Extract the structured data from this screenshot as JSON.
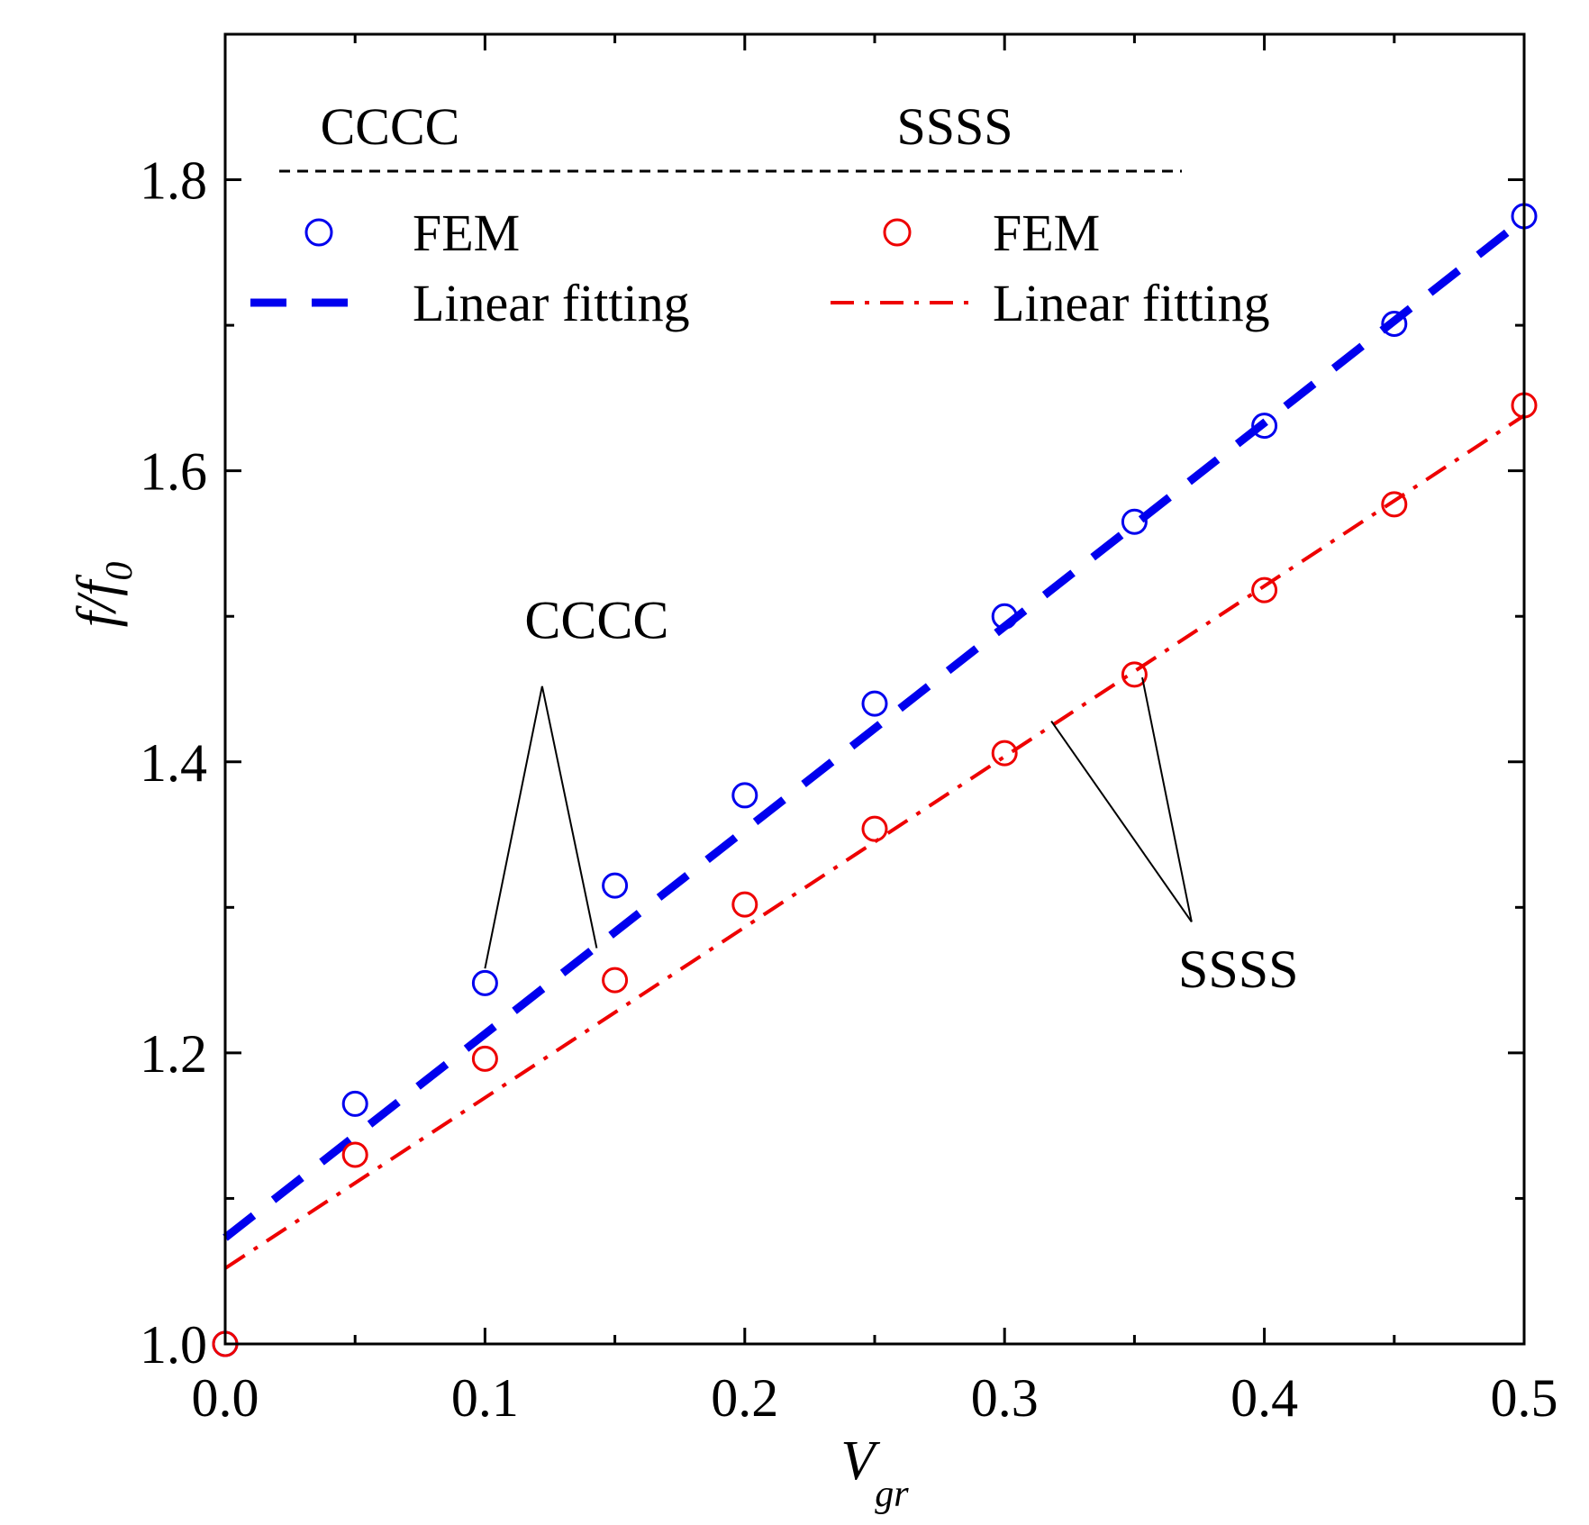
{
  "chart_data": {
    "type": "line",
    "title": "",
    "xlabel": "V",
    "xlabel_subscript": "gr",
    "ylabel": "f/f",
    "ylabel_subscript": "0",
    "xlim": [
      0.0,
      0.5
    ],
    "ylim": [
      1.0,
      1.9
    ],
    "x_ticks": [
      0.0,
      0.1,
      0.2,
      0.3,
      0.4,
      0.5
    ],
    "x_tick_labels": [
      "0.0",
      "0.1",
      "0.2",
      "0.3",
      "0.4",
      "0.5"
    ],
    "y_ticks": [
      1.0,
      1.2,
      1.4,
      1.6,
      1.8
    ],
    "y_tick_labels": [
      "1.0",
      "1.2",
      "1.4",
      "1.6",
      "1.8"
    ],
    "grid": false,
    "legend": {
      "placement": "top-left",
      "groups": [
        {
          "header": "CCCC",
          "entries": [
            {
              "label": "FEM",
              "marker": "open-circle",
              "color": "#0000ee"
            },
            {
              "label": "Linear fitting",
              "line": "dash",
              "color": "#0000ee"
            }
          ]
        },
        {
          "header": "SSSS",
          "entries": [
            {
              "label": "FEM",
              "marker": "open-circle",
              "color": "#ee0000"
            },
            {
              "label": "Linear fitting",
              "line": "dash-dot",
              "color": "#ee0000"
            }
          ]
        }
      ]
    },
    "series": [
      {
        "name": "CCCC FEM",
        "kind": "markers",
        "color": "#0000ee",
        "x": [
          0.0,
          0.05,
          0.1,
          0.15,
          0.2,
          0.25,
          0.3,
          0.35,
          0.4,
          0.45,
          0.5
        ],
        "y": [
          1.0,
          1.165,
          1.248,
          1.315,
          1.377,
          1.44,
          1.5,
          1.565,
          1.631,
          1.701,
          1.775
        ]
      },
      {
        "name": "CCCC Linear fitting",
        "kind": "line",
        "style": "dash",
        "color": "#0000ee",
        "x": [
          0.0,
          0.5
        ],
        "y": [
          1.073,
          1.773
        ]
      },
      {
        "name": "SSSS FEM",
        "kind": "markers",
        "color": "#ee0000",
        "x": [
          0.0,
          0.05,
          0.1,
          0.15,
          0.2,
          0.25,
          0.3,
          0.35,
          0.4,
          0.45,
          0.5
        ],
        "y": [
          1.0,
          1.13,
          1.196,
          1.25,
          1.302,
          1.354,
          1.406,
          1.46,
          1.518,
          1.577,
          1.645
        ]
      },
      {
        "name": "SSSS Linear fitting",
        "kind": "line",
        "style": "dash-dot",
        "color": "#ee0000",
        "x": [
          0.0,
          0.5
        ],
        "y": [
          1.052,
          1.638
        ]
      }
    ],
    "annotations": [
      {
        "text": "CCCC",
        "label_pos": [
          0.143,
          1.485
        ],
        "apex": [
          0.122,
          1.452
        ],
        "pointers": [
          [
            0.1,
            1.258
          ],
          [
            0.143,
            1.272
          ]
        ]
      },
      {
        "text": "SSSS",
        "label_pos": [
          0.39,
          1.245
        ],
        "apex": [
          0.372,
          1.29
        ],
        "pointers": [
          [
            0.318,
            1.428
          ],
          [
            0.353,
            1.458
          ]
        ]
      }
    ]
  }
}
